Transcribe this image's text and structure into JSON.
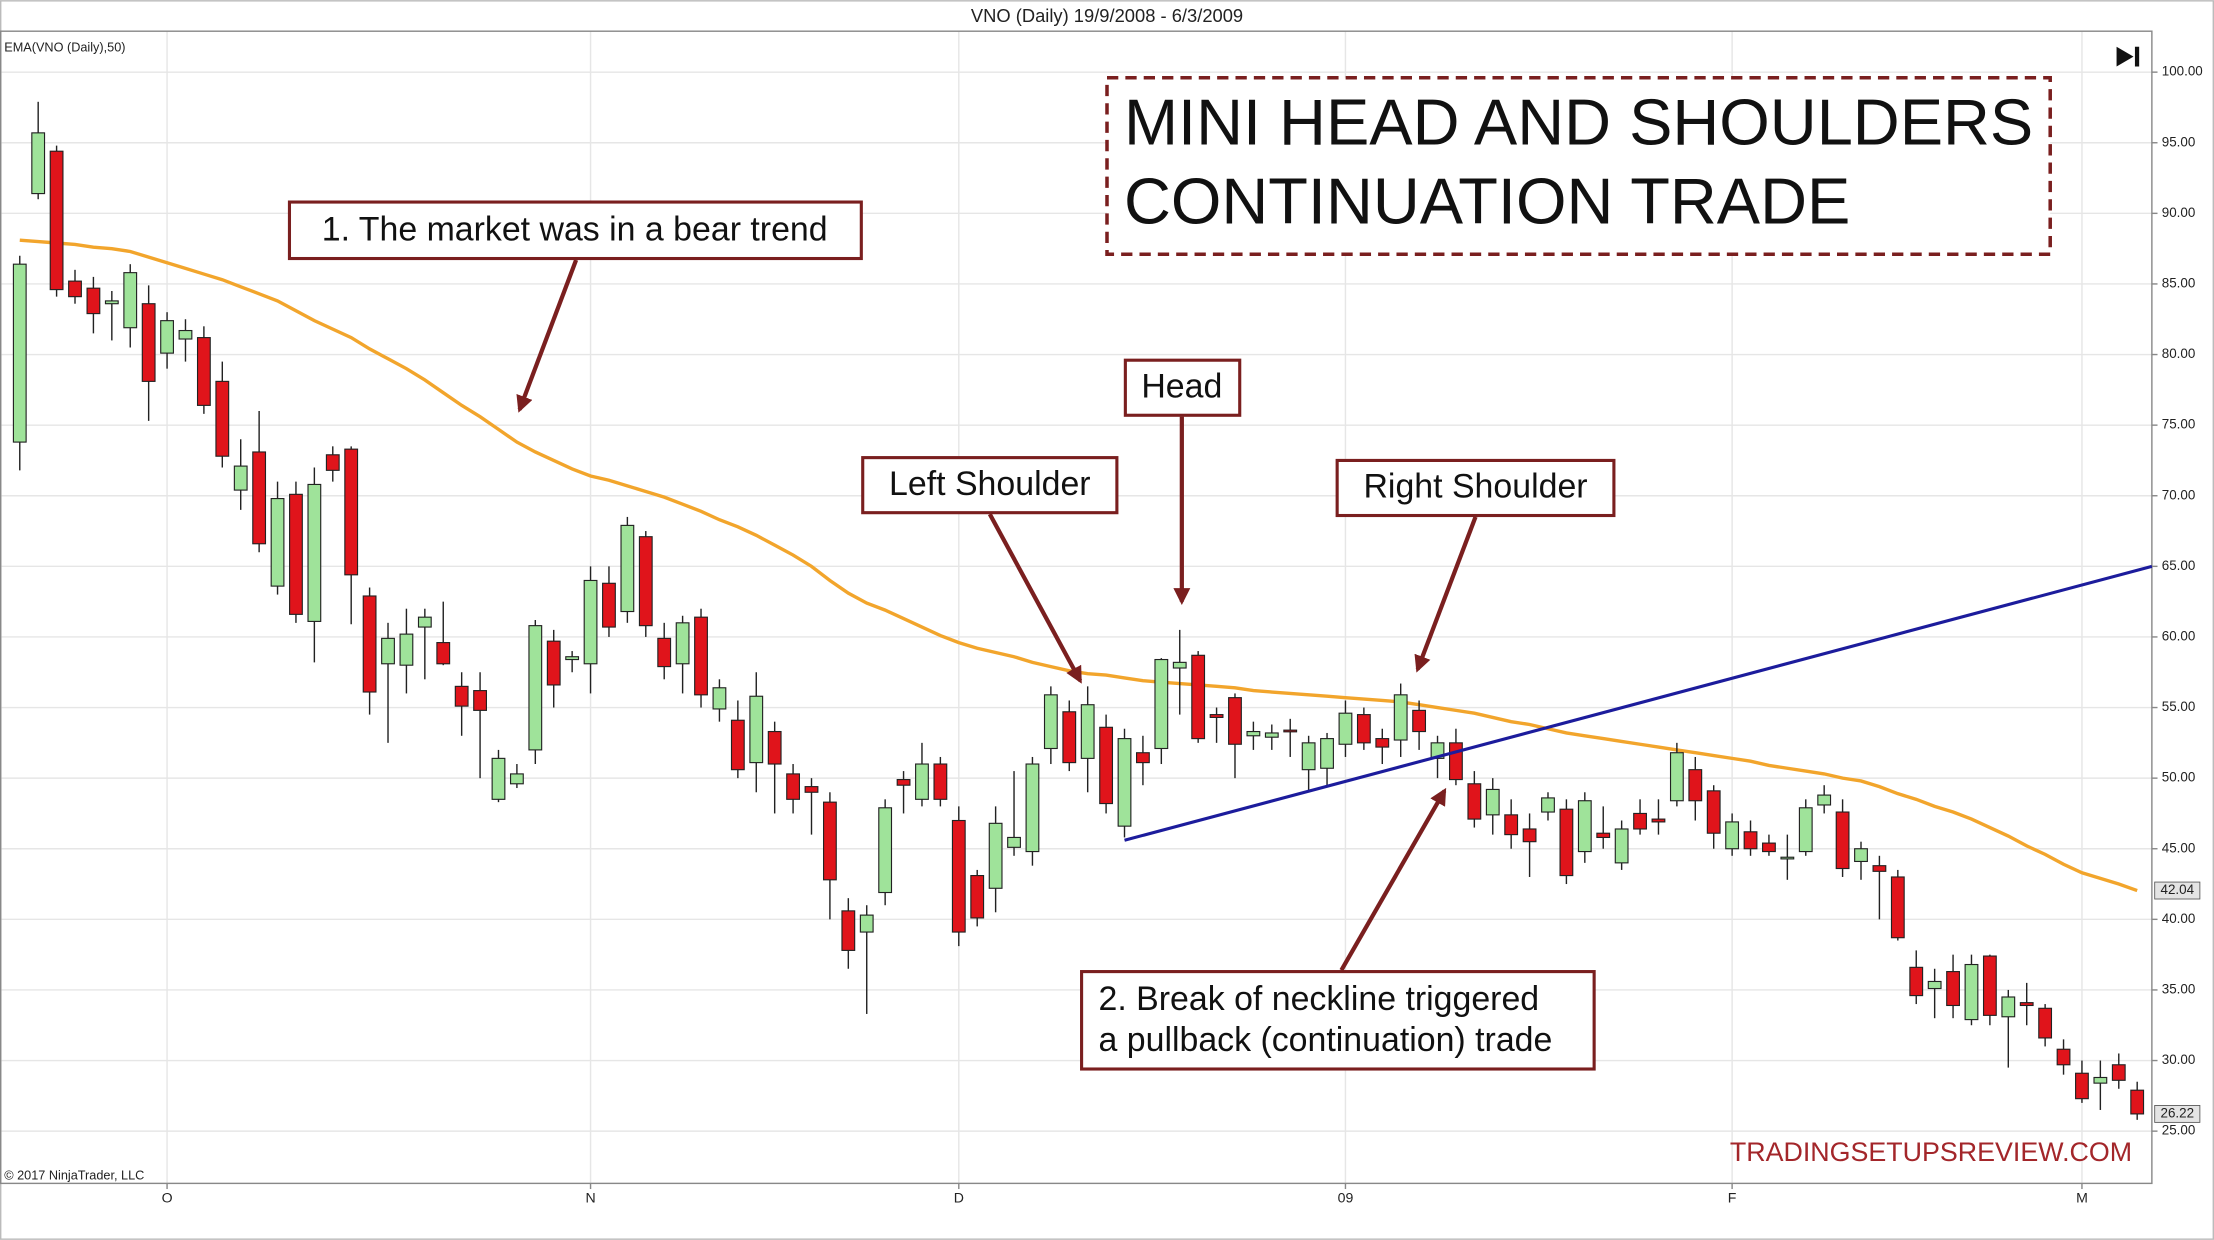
{
  "chart_data": {
    "type": "candlestick",
    "title": "VNO (Daily)  19/9/2008 - 6/3/2009",
    "categories": [
      null,
      null,
      null,
      null,
      null,
      null,
      null,
      null,
      "O",
      null,
      null,
      null,
      null,
      null,
      null,
      null,
      null,
      null,
      null,
      null,
      null,
      null,
      null,
      null,
      null,
      null,
      null,
      null,
      null,
      null,
      null,
      "N",
      null,
      null,
      null,
      null,
      null,
      null,
      null,
      null,
      null,
      null,
      null,
      null,
      null,
      null,
      null,
      null,
      null,
      null,
      null,
      "D",
      null,
      null,
      null,
      null,
      null,
      null,
      null,
      null,
      null,
      null,
      null,
      null,
      null,
      null,
      null,
      null,
      null,
      null,
      null,
      null,
      "09",
      null,
      null,
      null,
      null,
      null,
      null,
      null,
      null,
      null,
      null,
      null,
      null,
      null,
      null,
      null,
      null,
      null,
      null,
      null,
      null,
      "F",
      null,
      null,
      null,
      null,
      null,
      null,
      null,
      null,
      null,
      null,
      null,
      null,
      null,
      null,
      null,
      null,
      null,
      null,
      "M",
      null,
      null,
      null
    ],
    "open": [
      73.8,
      91.4,
      94.4,
      85.2,
      84.7,
      83.6,
      81.9,
      83.6,
      80.1,
      81.1,
      81.2,
      78.1,
      70.4,
      73.1,
      63.6,
      70.1,
      61.1,
      72.9,
      73.3,
      62.9,
      58.1,
      58,
      60.7,
      59.6,
      56.5,
      56.2,
      48.5,
      49.6,
      52,
      59.7,
      58.4,
      58.1,
      63.8,
      61.8,
      67.1,
      59.9,
      58.1,
      61.4,
      54.9,
      54.1,
      51.1,
      53.3,
      50.3,
      49.4,
      48.3,
      40.6,
      39.1,
      41.9,
      49.9,
      48.5,
      51,
      47,
      43.1,
      42.2,
      45.1,
      44.8,
      52.1,
      54.7,
      51.4,
      53.6,
      46.6,
      51.8,
      52.1,
      57.8,
      58.7,
      54.5,
      55.7,
      53,
      52.9,
      53.4,
      50.6,
      50.7,
      52.4,
      54.5,
      52.8,
      52.7,
      54.8,
      51.4,
      52.5,
      49.6,
      47.4,
      47.4,
      46.4,
      47.6,
      47.8,
      44.8,
      46.1,
      44,
      47.5,
      47.1,
      48.4,
      50.6,
      49.1,
      45,
      46.2,
      45.4,
      44.3,
      44.8,
      48.1,
      47.6,
      44.1,
      43.8,
      43,
      36.6,
      35.1,
      36.3,
      32.9,
      37.4,
      33.1,
      34.1,
      33.7,
      30.8,
      29.1,
      28.4,
      29.7,
      27.9
    ],
    "high": [
      87,
      97.9,
      94.8,
      86,
      85.5,
      84.5,
      86.4,
      84.9,
      83,
      82.5,
      82,
      79.5,
      74,
      76,
      71,
      71,
      72,
      73.5,
      73.5,
      63.5,
      61,
      62,
      62,
      62.5,
      57.5,
      57.5,
      52,
      51,
      61.2,
      60.5,
      59,
      65,
      65,
      68.5,
      67.5,
      61,
      61.5,
      62,
      57,
      55.5,
      57.5,
      54,
      51,
      50,
      49,
      41.5,
      41,
      48.5,
      50.5,
      52.5,
      51.5,
      48,
      43.5,
      48,
      50.5,
      51.5,
      56.5,
      55.5,
      56.5,
      54.5,
      53.5,
      53,
      58.5,
      60.5,
      59,
      55,
      56,
      54,
      53.8,
      54.2,
      53,
      53.2,
      55.5,
      55,
      53.5,
      56.7,
      55.5,
      53,
      53.5,
      50.5,
      50,
      48.5,
      47.5,
      49,
      48.5,
      49,
      48,
      47,
      48.5,
      48.5,
      52.5,
      51.5,
      49.5,
      47.5,
      47,
      46,
      46,
      48.5,
      49.5,
      48.5,
      45.5,
      44.5,
      43.5,
      37.8,
      36.5,
      37.5,
      37.5,
      37.5,
      35,
      35.5,
      34,
      31.5,
      30,
      30,
      30.5,
      28.5
    ],
    "low": [
      71.8,
      91,
      84.1,
      83.6,
      81.5,
      81,
      80.5,
      75.3,
      79,
      79.5,
      75.8,
      72,
      69,
      66,
      63,
      61,
      58.2,
      71,
      60.9,
      54.5,
      52.5,
      56,
      57,
      58,
      53,
      50,
      48.3,
      49.3,
      51,
      55,
      57.5,
      56,
      60,
      61,
      60,
      57,
      56,
      55,
      54,
      50,
      49,
      47.5,
      47.5,
      46,
      40,
      36.5,
      33.3,
      41,
      47.5,
      48,
      48,
      38.1,
      39.5,
      40.5,
      44.5,
      43.8,
      51,
      50.5,
      49,
      47.5,
      45.8,
      49.5,
      51,
      54.5,
      52.5,
      52.5,
      50,
      52,
      52,
      51.5,
      49,
      49.5,
      51.5,
      52,
      51,
      51.5,
      52,
      50,
      49.5,
      46.5,
      46,
      45,
      43,
      47,
      42.5,
      44,
      45,
      43.5,
      46,
      46,
      48,
      47,
      45,
      44.5,
      44.5,
      44.5,
      42.8,
      44.5,
      47.5,
      43,
      42.8,
      40,
      38.5,
      34,
      33,
      33,
      32.5,
      32.5,
      29.5,
      32.5,
      31,
      29,
      27,
      26.5,
      28,
      25.8
    ],
    "close": [
      86.4,
      95.7,
      84.6,
      84.1,
      82.9,
      83.8,
      85.8,
      78.1,
      82.4,
      81.7,
      76.4,
      72.8,
      72.1,
      66.6,
      69.8,
      61.6,
      70.8,
      71.8,
      64.4,
      56.1,
      59.9,
      60.2,
      61.4,
      58.1,
      55.1,
      54.8,
      51.4,
      50.3,
      60.8,
      56.6,
      58.6,
      64,
      60.7,
      67.9,
      60.8,
      57.9,
      61,
      55.9,
      56.4,
      50.6,
      55.8,
      51,
      48.5,
      49,
      42.8,
      37.8,
      40.3,
      47.9,
      49.5,
      51,
      48.5,
      39.1,
      40.1,
      46.8,
      45.8,
      51,
      55.9,
      51.1,
      55.2,
      48.2,
      52.8,
      51.1,
      58.4,
      58.2,
      52.8,
      54.3,
      52.4,
      53.3,
      53.2,
      53.3,
      52.5,
      52.8,
      54.6,
      52.5,
      52.2,
      55.9,
      53.3,
      52.5,
      49.9,
      47.1,
      49.2,
      46,
      45.5,
      48.6,
      43.1,
      48.4,
      45.8,
      46.4,
      46.4,
      46.9,
      51.8,
      48.4,
      46.1,
      46.9,
      45,
      44.8,
      44.4,
      47.9,
      48.8,
      43.6,
      45,
      43.4,
      38.7,
      34.6,
      35.6,
      33.9,
      36.8,
      33.2,
      34.5,
      33.9,
      31.6,
      29.7,
      27.3,
      28.8,
      28.6,
      26.22
    ],
    "up_color": "#9fe39a",
    "down_color": "#e0141b",
    "ylim": [
      21.3,
      102.9
    ],
    "yticks": [
      {
        "value": 25,
        "label": "25.00"
      },
      {
        "value": 30,
        "label": "30.00"
      },
      {
        "value": 35,
        "label": "35.00"
      },
      {
        "value": 40,
        "label": "40.00"
      },
      {
        "value": 45,
        "label": "45.00"
      },
      {
        "value": 50,
        "label": "50.00"
      },
      {
        "value": 55,
        "label": "55.00"
      },
      {
        "value": 60,
        "label": "60.00"
      },
      {
        "value": 65,
        "label": "65.00"
      },
      {
        "value": 70,
        "label": "70.00"
      },
      {
        "value": 75,
        "label": "75.00"
      },
      {
        "value": 80,
        "label": "80.00"
      },
      {
        "value": 85,
        "label": "85.00"
      },
      {
        "value": 90,
        "label": "90.00"
      },
      {
        "value": 95,
        "label": "95.00"
      },
      {
        "value": 100,
        "label": "100.00"
      }
    ],
    "grid": true,
    "overlays": [
      {
        "name": "EMA(VNO (Daily),50)",
        "color": "#f2a52c",
        "values": [
          88.1,
          88.0,
          87.9,
          87.8,
          87.6,
          87.5,
          87.3,
          86.9,
          86.5,
          86.1,
          85.7,
          85.3,
          84.8,
          84.3,
          83.8,
          83.1,
          82.4,
          81.8,
          81.2,
          80.4,
          79.7,
          79.0,
          78.2,
          77.3,
          76.4,
          75.6,
          74.7,
          73.8,
          73.1,
          72.5,
          71.9,
          71.4,
          71.1,
          70.7,
          70.3,
          69.9,
          69.4,
          68.9,
          68.3,
          67.8,
          67.2,
          66.5,
          65.8,
          65.0,
          64.0,
          63.1,
          62.4,
          61.9,
          61.3,
          60.7,
          60.1,
          59.6,
          59.2,
          58.9,
          58.6,
          58.2,
          57.9,
          57.6,
          57.4,
          57.3,
          57.1,
          56.9,
          56.8,
          56.7,
          56.6,
          56.5,
          56.4,
          56.2,
          56.1,
          56.0,
          55.9,
          55.8,
          55.7,
          55.6,
          55.5,
          55.4,
          55.2,
          55.0,
          54.8,
          54.6,
          54.3,
          54.0,
          53.8,
          53.5,
          53.2,
          53.0,
          52.8,
          52.6,
          52.4,
          52.2,
          52.0,
          51.8,
          51.6,
          51.4,
          51.2,
          50.9,
          50.7,
          50.5,
          50.3,
          50.0,
          49.8,
          49.4,
          48.9,
          48.5,
          48.0,
          47.6,
          47.1,
          46.5,
          45.9,
          45.2,
          44.6,
          43.9,
          43.3,
          42.9,
          42.5,
          42.04
        ]
      }
    ],
    "lines": [
      {
        "color": "#1c1c9c",
        "x": [
          60,
          115.8
        ],
        "values": [
          45.6,
          65
        ]
      }
    ]
  },
  "title_box": [
    "MINI HEAD AND SHOULDERS",
    "CONTINUATION TRADE"
  ],
  "notes": [
    "1. The market was in a bear trend",
    "Head",
    "Left Shoulder",
    "Right Shoulder",
    [
      "2. Break of neckline triggered",
      "a pullback (continuation) trade"
    ]
  ],
  "copyright": "© 2017 NinjaTrader, LLC",
  "watermark": "TRADINGSETUPSREVIEW.COM"
}
